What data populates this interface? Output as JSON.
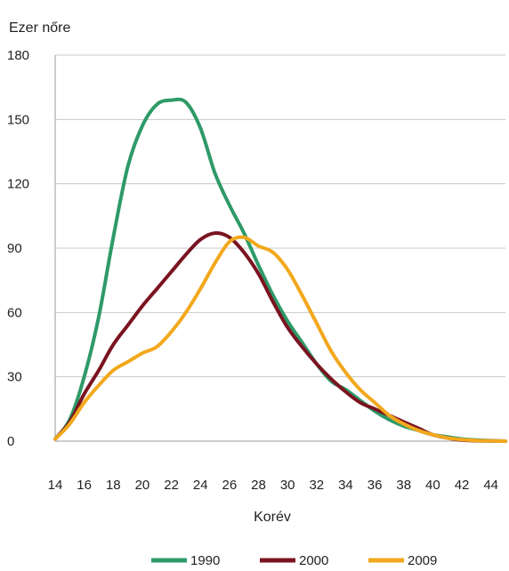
{
  "chart_data": {
    "type": "line",
    "title": "",
    "ylabel": "Ezer nőre",
    "xlabel": "Korév",
    "ylim": [
      0,
      180
    ],
    "xlim": [
      14,
      45
    ],
    "yticks": [
      0,
      30,
      60,
      90,
      120,
      150,
      180
    ],
    "xticks": [
      14,
      16,
      18,
      20,
      22,
      24,
      26,
      28,
      30,
      32,
      34,
      36,
      38,
      40,
      42,
      44
    ],
    "grid": true,
    "legend_position": "bottom",
    "x": [
      14,
      15,
      16,
      17,
      18,
      19,
      20,
      21,
      22,
      23,
      24,
      25,
      26,
      27,
      28,
      29,
      30,
      31,
      32,
      33,
      34,
      35,
      36,
      37,
      38,
      39,
      40,
      41,
      42,
      43,
      44,
      45
    ],
    "series": [
      {
        "name": "1990",
        "color": "#2e9a68",
        "values": [
          1,
          10,
          30,
          58,
          95,
          128,
          147,
          157,
          159,
          158,
          146,
          125,
          110,
          97,
          82,
          68,
          56,
          46,
          36,
          28,
          24,
          19,
          14,
          10,
          7,
          5,
          3,
          2,
          1,
          0.5,
          0.2,
          0
        ]
      },
      {
        "name": "2000",
        "color": "#7a1420",
        "values": [
          1,
          9,
          22,
          33,
          45,
          54,
          63,
          71,
          79,
          87,
          94,
          97,
          95,
          88,
          78,
          65,
          53,
          44,
          36,
          29,
          23,
          18,
          15,
          12,
          9,
          6,
          3,
          1.5,
          0.5,
          0.2,
          0.1,
          0
        ]
      },
      {
        "name": "2009",
        "color": "#f2a81d",
        "values": [
          1,
          8,
          18,
          26,
          33,
          37,
          41,
          44,
          51,
          60,
          71,
          83,
          93,
          95,
          91,
          88,
          80,
          68,
          55,
          42,
          32,
          24,
          18,
          12,
          8,
          5,
          3,
          1.5,
          0.7,
          0.3,
          0.1,
          0
        ]
      }
    ]
  }
}
